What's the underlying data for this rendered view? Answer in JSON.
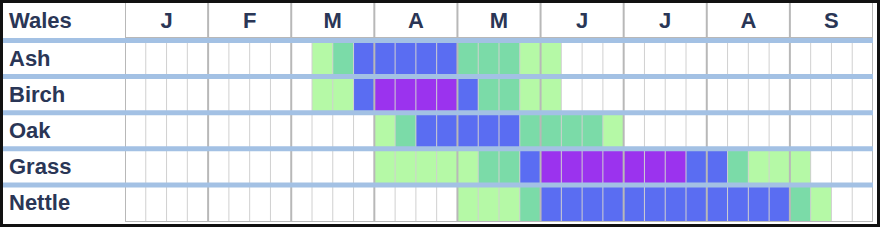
{
  "chart_data": {
    "type": "heatmap",
    "title": "Wales",
    "categories": [
      "Ash",
      "Birch",
      "Oak",
      "Grass",
      "Nettle"
    ],
    "x": [
      1,
      2,
      3,
      4,
      5,
      6,
      7,
      8,
      9,
      10,
      11,
      12,
      13,
      14,
      15,
      16,
      17,
      18,
      19,
      20,
      21,
      22,
      23,
      24,
      25,
      26,
      27,
      28,
      29,
      30,
      31,
      32,
      33,
      34,
      35,
      36
    ],
    "xlim": [
      0.5,
      36.5
    ],
    "xticks": [
      {
        "value": 2.5,
        "label": "J"
      },
      {
        "value": 6.5,
        "label": "F"
      },
      {
        "value": 10.5,
        "label": "M"
      },
      {
        "value": 14.5,
        "label": "A"
      },
      {
        "value": 18.5,
        "label": "M"
      },
      {
        "value": 22.5,
        "label": "J"
      },
      {
        "value": 26.5,
        "label": "J"
      },
      {
        "value": 30.5,
        "label": "A"
      },
      {
        "value": 34.5,
        "label": "S"
      }
    ],
    "cells": [
      [
        0,
        0,
        0,
        0,
        0,
        0,
        0,
        0,
        0,
        1,
        2,
        3,
        3,
        3,
        3,
        3,
        2,
        2,
        2,
        1,
        1,
        0,
        0,
        0,
        0,
        0,
        0,
        0,
        0,
        0,
        0,
        0,
        0,
        0,
        0,
        0
      ],
      [
        0,
        0,
        0,
        0,
        0,
        0,
        0,
        0,
        0,
        1,
        1,
        3,
        4,
        4,
        4,
        4,
        3,
        2,
        2,
        1,
        1,
        0,
        0,
        0,
        0,
        0,
        0,
        0,
        0,
        0,
        0,
        0,
        0,
        0,
        0,
        0
      ],
      [
        0,
        0,
        0,
        0,
        0,
        0,
        0,
        0,
        0,
        0,
        0,
        0,
        1,
        2,
        3,
        3,
        3,
        3,
        3,
        2,
        2,
        2,
        2,
        1,
        0,
        0,
        0,
        0,
        0,
        0,
        0,
        0,
        0,
        0,
        0,
        0
      ],
      [
        0,
        0,
        0,
        0,
        0,
        0,
        0,
        0,
        0,
        0,
        0,
        0,
        1,
        1,
        1,
        1,
        1,
        2,
        2,
        3,
        4,
        4,
        4,
        4,
        4,
        4,
        4,
        3,
        3,
        2,
        1,
        1,
        1,
        0,
        0,
        0
      ],
      [
        0,
        0,
        0,
        0,
        0,
        0,
        0,
        0,
        0,
        0,
        0,
        0,
        0,
        0,
        0,
        0,
        1,
        1,
        1,
        2,
        3,
        3,
        3,
        3,
        3,
        3,
        3,
        3,
        3,
        3,
        3,
        3,
        2,
        1,
        0,
        0
      ]
    ],
    "zlim": [
      0,
      4
    ],
    "colors": [
      "#ffffff",
      "#b5f9a6",
      "#7bdba8",
      "#5a6df2",
      "#9b33ee"
    ]
  }
}
